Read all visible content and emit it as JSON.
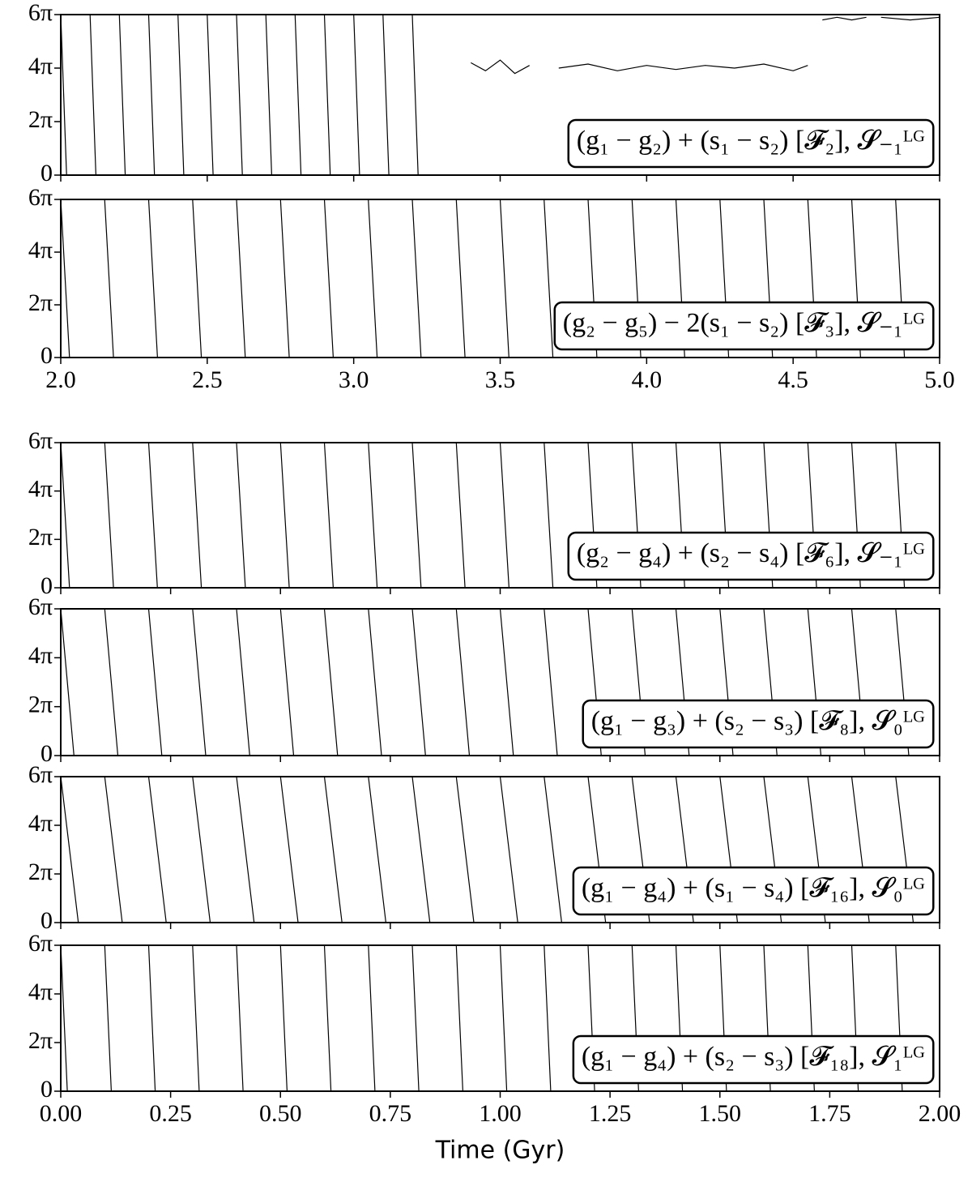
{
  "chart_data": [
    {
      "type": "line",
      "xlim": [
        2,
        5
      ],
      "xticks": [
        2,
        2.5,
        3,
        3.5,
        4,
        4.5,
        5
      ],
      "ylim": [
        0,
        6
      ],
      "yticks": [
        0,
        {
          "value": 2,
          "label": "2π"
        },
        {
          "value": 4,
          "label": "4π"
        },
        {
          "value": 6,
          "label": "6π"
        }
      ],
      "annotation": "(g₁ − g₂) + (s₁ − s₂) [𝓕₂], 𝓢₋₁ᴸᴳ",
      "series": [
        {
          "color": "#000000",
          "x": [
            2.0,
            2.02,
            2.02,
            2.1,
            2.12,
            2.12,
            2.2,
            2.22,
            2.22,
            2.3,
            2.32,
            2.32,
            2.4,
            2.42,
            2.42,
            2.5,
            2.52,
            2.52,
            2.6,
            2.62,
            2.62,
            2.7,
            2.72,
            2.72,
            2.8,
            2.82,
            2.82,
            2.9,
            2.92,
            2.92,
            3.0,
            3.02,
            3.02,
            3.1,
            3.12,
            3.12,
            3.2,
            3.22,
            3.22,
            3.4,
            3.45,
            3.5,
            3.55,
            3.6,
            3.6,
            3.7,
            3.8,
            3.9,
            4.0,
            4.1,
            4.2,
            4.3,
            4.4,
            4.5,
            4.55,
            4.55,
            4.6,
            4.65,
            4.7,
            4.75,
            4.75,
            4.8,
            4.9,
            5.0
          ],
          "values": [
            6,
            0,
            null,
            6,
            0,
            null,
            6,
            0,
            null,
            6,
            0,
            null,
            6,
            0,
            null,
            6,
            0,
            null,
            6,
            0,
            null,
            6,
            0,
            null,
            6,
            0,
            null,
            6,
            0,
            null,
            6,
            0,
            null,
            6,
            0,
            null,
            6,
            0,
            null,
            4.2,
            3.9,
            4.3,
            3.8,
            4.1,
            null,
            4.0,
            4.15,
            3.9,
            4.1,
            3.95,
            4.1,
            4.0,
            4.15,
            3.9,
            4.1,
            null,
            5.8,
            5.9,
            5.8,
            5.9,
            null,
            5.9,
            5.8,
            5.9
          ]
        }
      ]
    },
    {
      "type": "line",
      "xlim": [
        2,
        5
      ],
      "xticks": [
        {
          "value": 2,
          "label": "2.0"
        },
        {
          "value": 2.5,
          "label": "2.5"
        },
        {
          "value": 3,
          "label": "3.0"
        },
        {
          "value": 3.5,
          "label": "3.5"
        },
        {
          "value": 4,
          "label": "4.0"
        },
        {
          "value": 4.5,
          "label": "4.5"
        },
        {
          "value": 5,
          "label": "5.0"
        }
      ],
      "ylim": [
        0,
        6
      ],
      "yticks": [
        0,
        {
          "value": 2,
          "label": "2π"
        },
        {
          "value": 4,
          "label": "4π"
        },
        {
          "value": 6,
          "label": "6π"
        }
      ],
      "annotation": "(g₂ − g₅) − 2(s₁ − s₂) [𝓕₃], 𝓢₋₁ᴸᴳ",
      "series": [
        {
          "color": "#000000",
          "x": [
            2.0,
            2.03,
            2.03,
            2.15,
            2.18,
            2.18,
            2.3,
            2.33,
            2.33,
            2.45,
            2.48,
            2.48,
            2.6,
            2.63,
            2.63,
            2.75,
            2.78,
            2.78,
            2.9,
            2.93,
            2.93,
            3.05,
            3.08,
            3.08,
            3.2,
            3.23,
            3.23,
            3.35,
            3.38,
            3.38,
            3.5,
            3.53,
            3.53,
            3.65,
            3.68,
            3.68,
            3.8,
            3.83,
            3.83,
            3.95,
            3.98,
            3.98,
            4.1,
            4.13,
            4.13,
            4.25,
            4.28,
            4.28,
            4.4,
            4.43,
            4.43,
            4.55,
            4.58,
            4.58,
            4.7,
            4.73,
            4.73,
            4.85,
            4.88,
            4.88
          ],
          "values": [
            6,
            0,
            null,
            6,
            0,
            null,
            6,
            0,
            null,
            6,
            0,
            null,
            6,
            0,
            null,
            6,
            0,
            null,
            6,
            0,
            null,
            6,
            0,
            null,
            6,
            0,
            null,
            6,
            0,
            null,
            6,
            0,
            null,
            6,
            0,
            null,
            6,
            0,
            null,
            6,
            0,
            null,
            6,
            0,
            null,
            6,
            0,
            null,
            6,
            0,
            null,
            6,
            0,
            null,
            6,
            0,
            null,
            6,
            0,
            null
          ]
        }
      ]
    },
    {
      "type": "line",
      "xlim": [
        0,
        2
      ],
      "xticks": [
        0,
        0.25,
        0.5,
        0.75,
        1,
        1.25,
        1.5,
        1.75,
        2
      ],
      "ylim": [
        0,
        6
      ],
      "yticks": [
        0,
        {
          "value": 2,
          "label": "2π"
        },
        {
          "value": 4,
          "label": "4π"
        },
        {
          "value": 6,
          "label": "6π"
        }
      ],
      "annotation": "(g₂ − g₄) + (s₂ − s₄) [𝓕₆], 𝓢₋₁ᴸᴳ",
      "series": [
        {
          "color": "#000000",
          "x": [
            0.0,
            0.02,
            0.02,
            0.1,
            0.12,
            0.12,
            0.2,
            0.22,
            0.22,
            0.3,
            0.32,
            0.32,
            0.4,
            0.42,
            0.42,
            0.5,
            0.52,
            0.52,
            0.6,
            0.62,
            0.62,
            0.7,
            0.72,
            0.72,
            0.8,
            0.82,
            0.82,
            0.9,
            0.92,
            0.92,
            1.0,
            1.02,
            1.02,
            1.1,
            1.12,
            1.12,
            1.2,
            1.22,
            1.22,
            1.3,
            1.32,
            1.32,
            1.4,
            1.42,
            1.42,
            1.5,
            1.52,
            1.52,
            1.6,
            1.62,
            1.62,
            1.7,
            1.72,
            1.72,
            1.8,
            1.82,
            1.82,
            1.9,
            1.92,
            1.92
          ],
          "values": [
            6,
            0,
            null,
            6,
            0,
            null,
            6,
            0,
            null,
            6,
            0,
            null,
            6,
            0,
            null,
            6,
            0,
            null,
            6,
            0,
            null,
            6,
            0,
            null,
            6,
            0,
            null,
            6,
            0,
            null,
            6,
            0,
            null,
            6,
            0,
            null,
            6,
            0,
            null,
            6,
            0,
            null,
            6,
            0,
            null,
            6,
            0,
            null,
            6,
            0,
            null,
            6,
            0,
            null,
            6,
            0,
            null,
            6,
            0,
            null
          ]
        }
      ]
    },
    {
      "type": "line",
      "xlim": [
        0,
        2
      ],
      "xticks": [
        0,
        0.25,
        0.5,
        0.75,
        1,
        1.25,
        1.5,
        1.75,
        2
      ],
      "ylim": [
        0,
        6
      ],
      "yticks": [
        0,
        {
          "value": 2,
          "label": "2π"
        },
        {
          "value": 4,
          "label": "4π"
        },
        {
          "value": 6,
          "label": "6π"
        }
      ],
      "annotation": "(g₁ − g₃) + (s₂ − s₃) [𝓕₈], 𝓢₀ᴸᴳ",
      "series": [
        {
          "color": "#000000",
          "x": [
            0.0,
            0.03,
            0.03,
            0.1,
            0.13,
            0.13,
            0.2,
            0.23,
            0.23,
            0.3,
            0.33,
            0.33,
            0.4,
            0.43,
            0.43,
            0.5,
            0.53,
            0.53,
            0.6,
            0.63,
            0.63,
            0.7,
            0.73,
            0.73,
            0.8,
            0.83,
            0.83,
            0.9,
            0.93,
            0.93,
            1.0,
            1.03,
            1.03,
            1.1,
            1.13,
            1.13,
            1.2,
            1.23,
            1.23,
            1.3,
            1.33,
            1.33,
            1.4,
            1.43,
            1.43,
            1.5,
            1.53,
            1.53,
            1.6,
            1.63,
            1.63,
            1.7,
            1.73,
            1.73,
            1.8,
            1.83,
            1.83,
            1.9,
            1.93,
            1.93
          ],
          "values": [
            6,
            0,
            null,
            6,
            0,
            null,
            6,
            0,
            null,
            6,
            0,
            null,
            6,
            0,
            null,
            6,
            0,
            null,
            6,
            0,
            null,
            6,
            0,
            null,
            6,
            0,
            null,
            6,
            0,
            null,
            6,
            0,
            null,
            6,
            0,
            null,
            6,
            0,
            null,
            6,
            0,
            null,
            6,
            0,
            null,
            6,
            0,
            null,
            6,
            0,
            null,
            6,
            0,
            null,
            6,
            0,
            null,
            6,
            0,
            null
          ]
        }
      ]
    },
    {
      "type": "line",
      "xlim": [
        0,
        2
      ],
      "xticks": [
        0,
        0.25,
        0.5,
        0.75,
        1,
        1.25,
        1.5,
        1.75,
        2
      ],
      "ylim": [
        0,
        6
      ],
      "yticks": [
        0,
        {
          "value": 2,
          "label": "2π"
        },
        {
          "value": 4,
          "label": "4π"
        },
        {
          "value": 6,
          "label": "6π"
        }
      ],
      "annotation": "(g₁ − g₄) + (s₁ − s₄) [𝓕₁₆], 𝓢₀ᴸᴳ",
      "series": [
        {
          "color": "#000000",
          "x": [
            0.0,
            0.04,
            0.04,
            0.1,
            0.14,
            0.14,
            0.2,
            0.24,
            0.24,
            0.3,
            0.34,
            0.34,
            0.4,
            0.44,
            0.44,
            0.5,
            0.54,
            0.54,
            0.6,
            0.64,
            0.64,
            0.7,
            0.74,
            0.74,
            0.8,
            0.84,
            0.84,
            0.9,
            0.94,
            0.94,
            1.0,
            1.04,
            1.04,
            1.1,
            1.14,
            1.14,
            1.2,
            1.24,
            1.24,
            1.3,
            1.34,
            1.34,
            1.4,
            1.44,
            1.44,
            1.5,
            1.54,
            1.54,
            1.6,
            1.64,
            1.64,
            1.7,
            1.74,
            1.74,
            1.8,
            1.84,
            1.84,
            1.9,
            1.94,
            1.94
          ],
          "values": [
            6,
            0,
            null,
            6,
            0,
            null,
            6,
            0,
            null,
            6,
            0,
            null,
            6,
            0,
            null,
            6,
            0,
            null,
            6,
            0,
            null,
            6,
            0,
            null,
            6,
            0,
            null,
            6,
            0,
            null,
            6,
            0,
            null,
            6,
            0,
            null,
            6,
            0,
            null,
            6,
            0,
            null,
            6,
            0,
            null,
            6,
            0,
            null,
            6,
            0,
            null,
            6,
            0,
            null,
            6,
            0,
            null,
            6,
            0,
            null
          ]
        }
      ]
    },
    {
      "type": "line",
      "xlim": [
        0,
        2
      ],
      "xticks": [
        {
          "value": 0,
          "label": "0.00"
        },
        {
          "value": 0.25,
          "label": "0.25"
        },
        {
          "value": 0.5,
          "label": "0.50"
        },
        {
          "value": 0.75,
          "label": "0.75"
        },
        {
          "value": 1,
          "label": "1.00"
        },
        {
          "value": 1.25,
          "label": "1.25"
        },
        {
          "value": 1.5,
          "label": "1.50"
        },
        {
          "value": 1.75,
          "label": "1.75"
        },
        {
          "value": 2,
          "label": "2.00"
        }
      ],
      "ylim": [
        0,
        6
      ],
      "yticks": [
        0,
        {
          "value": 2,
          "label": "2π"
        },
        {
          "value": 4,
          "label": "4π"
        },
        {
          "value": 6,
          "label": "6π"
        }
      ],
      "annotation": "(g₁ − g₄) + (s₂ − s₃) [𝓕₁₈], 𝓢₁ᴸᴳ",
      "xlabel": "Time (Gyr)",
      "series": [
        {
          "color": "#000000",
          "x": [
            0.0,
            0.015,
            0.015,
            0.1,
            0.115,
            0.115,
            0.2,
            0.215,
            0.215,
            0.3,
            0.315,
            0.315,
            0.4,
            0.415,
            0.415,
            0.5,
            0.515,
            0.515,
            0.6,
            0.615,
            0.615,
            0.7,
            0.715,
            0.715,
            0.8,
            0.815,
            0.815,
            0.9,
            0.915,
            0.915,
            1.0,
            1.015,
            1.015,
            1.1,
            1.115,
            1.115,
            1.2,
            1.215,
            1.215,
            1.3,
            1.315,
            1.315,
            1.4,
            1.415,
            1.415,
            1.5,
            1.515,
            1.515,
            1.6,
            1.615,
            1.615,
            1.7,
            1.715,
            1.715,
            1.8,
            1.815,
            1.815,
            1.9,
            1.915,
            1.915
          ],
          "values": [
            6,
            0,
            null,
            6,
            0,
            null,
            6,
            0,
            null,
            6,
            0,
            null,
            6,
            0,
            null,
            6,
            0,
            null,
            6,
            0,
            null,
            6,
            0,
            null,
            6,
            0,
            null,
            6,
            0,
            null,
            6,
            0,
            null,
            6,
            0,
            null,
            6,
            0,
            null,
            6,
            0,
            null,
            6,
            0,
            null,
            6,
            0,
            null,
            6,
            0,
            null,
            6,
            0,
            null,
            6,
            0,
            null,
            6,
            0,
            null
          ]
        }
      ]
    }
  ]
}
